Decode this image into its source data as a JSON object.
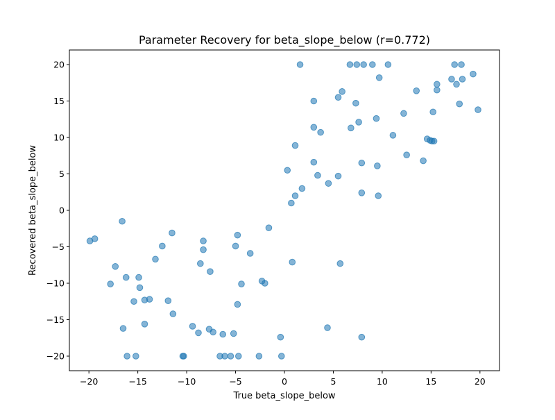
{
  "chart_data": {
    "type": "scatter",
    "title": "Parameter Recovery for beta_slope_below (r=0.772)",
    "xlabel": "True beta_slope_below",
    "ylabel": "Recovered beta_slope_below",
    "xlim": [
      -22,
      22
    ],
    "ylim": [
      -22,
      22
    ],
    "xticks": [
      -20,
      -15,
      -10,
      -5,
      0,
      5,
      10,
      15,
      20
    ],
    "yticks": [
      -20,
      -15,
      -10,
      -5,
      0,
      5,
      10,
      15,
      20
    ],
    "grid": false,
    "legend": "none",
    "marker_color": "#1f77b4",
    "marker_alpha": 0.55,
    "points": [
      {
        "x": -19.9,
        "y": -4.2
      },
      {
        "x": -19.4,
        "y": -3.9
      },
      {
        "x": -17.8,
        "y": -10.1
      },
      {
        "x": -17.3,
        "y": -7.7
      },
      {
        "x": -16.6,
        "y": -1.5
      },
      {
        "x": -16.5,
        "y": -16.2
      },
      {
        "x": -16.2,
        "y": -9.2
      },
      {
        "x": -16.1,
        "y": -20
      },
      {
        "x": -15.4,
        "y": -12.5
      },
      {
        "x": -15.2,
        "y": -20
      },
      {
        "x": -14.9,
        "y": -9.2
      },
      {
        "x": -14.8,
        "y": -10.6
      },
      {
        "x": -14.3,
        "y": -12.3
      },
      {
        "x": -14.3,
        "y": -15.6
      },
      {
        "x": -13.8,
        "y": -12.2
      },
      {
        "x": -13.2,
        "y": -6.7
      },
      {
        "x": -12.5,
        "y": -4.9
      },
      {
        "x": -11.9,
        "y": -12.4
      },
      {
        "x": -11.5,
        "y": -3.1
      },
      {
        "x": -11.4,
        "y": -14.2
      },
      {
        "x": -10.4,
        "y": -20
      },
      {
        "x": -10.3,
        "y": -20
      },
      {
        "x": -9.4,
        "y": -15.9
      },
      {
        "x": -8.8,
        "y": -16.8
      },
      {
        "x": -8.6,
        "y": -7.3
      },
      {
        "x": -8.3,
        "y": -4.2
      },
      {
        "x": -8.3,
        "y": -5.4
      },
      {
        "x": -7.7,
        "y": -16.3
      },
      {
        "x": -7.6,
        "y": -8.4
      },
      {
        "x": -7.3,
        "y": -16.7
      },
      {
        "x": -6.6,
        "y": -20
      },
      {
        "x": -6.3,
        "y": -17.0
      },
      {
        "x": -6.1,
        "y": -20
      },
      {
        "x": -5.5,
        "y": -20
      },
      {
        "x": -5.2,
        "y": -16.9
      },
      {
        "x": -5.0,
        "y": -4.9
      },
      {
        "x": -4.8,
        "y": -3.4
      },
      {
        "x": -4.8,
        "y": -12.9
      },
      {
        "x": -4.7,
        "y": -20
      },
      {
        "x": -4.4,
        "y": -10.1
      },
      {
        "x": -3.5,
        "y": -5.9
      },
      {
        "x": -2.6,
        "y": -20
      },
      {
        "x": -2.3,
        "y": -9.7
      },
      {
        "x": -2.0,
        "y": -10.0
      },
      {
        "x": -1.6,
        "y": -2.4
      },
      {
        "x": -0.4,
        "y": -17.4
      },
      {
        "x": -0.3,
        "y": -20
      },
      {
        "x": 0.3,
        "y": 5.5
      },
      {
        "x": 0.7,
        "y": 1.0
      },
      {
        "x": 0.8,
        "y": -7.1
      },
      {
        "x": 1.1,
        "y": 2.0
      },
      {
        "x": 1.1,
        "y": 8.9
      },
      {
        "x": 1.6,
        "y": 20
      },
      {
        "x": 1.8,
        "y": 3.0
      },
      {
        "x": 3.0,
        "y": 15.0
      },
      {
        "x": 3.0,
        "y": 11.4
      },
      {
        "x": 3.0,
        "y": 6.6
      },
      {
        "x": 3.4,
        "y": 4.8
      },
      {
        "x": 3.7,
        "y": 10.7
      },
      {
        "x": 4.5,
        "y": 3.7
      },
      {
        "x": 4.4,
        "y": -16.1
      },
      {
        "x": 5.5,
        "y": 15.5
      },
      {
        "x": 5.5,
        "y": 4.7
      },
      {
        "x": 5.7,
        "y": -7.3
      },
      {
        "x": 5.9,
        "y": 16.3
      },
      {
        "x": 6.7,
        "y": 20
      },
      {
        "x": 6.8,
        "y": 11.3
      },
      {
        "x": 7.3,
        "y": 14.7
      },
      {
        "x": 7.4,
        "y": 20
      },
      {
        "x": 7.6,
        "y": 12.1
      },
      {
        "x": 7.9,
        "y": 6.5
      },
      {
        "x": 7.9,
        "y": 2.4
      },
      {
        "x": 7.9,
        "y": -17.4
      },
      {
        "x": 8.1,
        "y": 20
      },
      {
        "x": 9.0,
        "y": 20
      },
      {
        "x": 9.4,
        "y": 12.6
      },
      {
        "x": 9.5,
        "y": 6.1
      },
      {
        "x": 9.6,
        "y": 2.0
      },
      {
        "x": 9.7,
        "y": 18.2
      },
      {
        "x": 10.6,
        "y": 20
      },
      {
        "x": 11.1,
        "y": 10.3
      },
      {
        "x": 12.2,
        "y": 13.3
      },
      {
        "x": 12.5,
        "y": 7.6
      },
      {
        "x": 13.5,
        "y": 16.4
      },
      {
        "x": 14.2,
        "y": 6.8
      },
      {
        "x": 14.6,
        "y": 9.8
      },
      {
        "x": 14.9,
        "y": 9.6
      },
      {
        "x": 15.1,
        "y": 9.5
      },
      {
        "x": 15.3,
        "y": 9.5
      },
      {
        "x": 15.2,
        "y": 13.5
      },
      {
        "x": 15.6,
        "y": 17.3
      },
      {
        "x": 15.6,
        "y": 16.5
      },
      {
        "x": 17.1,
        "y": 18.0
      },
      {
        "x": 17.4,
        "y": 20
      },
      {
        "x": 17.6,
        "y": 17.3
      },
      {
        "x": 17.9,
        "y": 14.6
      },
      {
        "x": 18.1,
        "y": 20
      },
      {
        "x": 18.2,
        "y": 18.0
      },
      {
        "x": 19.3,
        "y": 18.7
      },
      {
        "x": 19.8,
        "y": 13.8
      }
    ]
  }
}
